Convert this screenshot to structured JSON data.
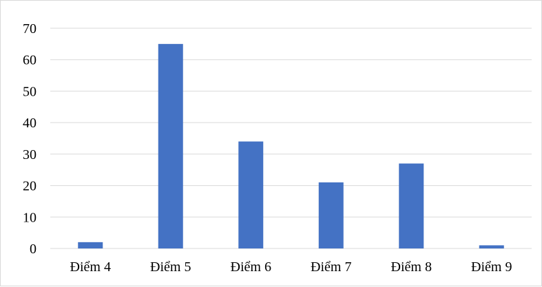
{
  "chart_data": {
    "type": "bar",
    "title": "",
    "xlabel": "",
    "ylabel": "",
    "categories": [
      "Điểm 4",
      "Điểm 5",
      "Điểm 6",
      "Điểm 7",
      "Điểm 8",
      "Điểm 9"
    ],
    "values": [
      2,
      65,
      34,
      21,
      27,
      1
    ],
    "ylim": [
      0,
      70
    ],
    "yticks": [
      "0",
      "10",
      "20",
      "30",
      "40",
      "50",
      "60",
      "70"
    ],
    "grid": true,
    "legend": "none",
    "bar_color": "#4472c4"
  }
}
